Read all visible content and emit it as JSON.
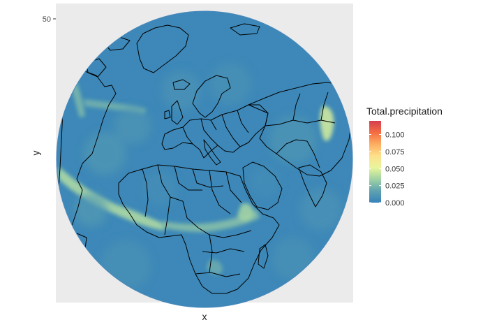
{
  "chart_data": {
    "type": "heatmap",
    "projection": "orthographic",
    "title": "",
    "xlabel": "x",
    "ylabel": "y",
    "y_ticks": [
      50
    ],
    "y_tick_labels": [
      "50"
    ],
    "x_ticks": [],
    "grid": false,
    "legend": {
      "title": "Total.precipitation",
      "placement": "right",
      "breaks": [
        0.0,
        0.025,
        0.05,
        0.075,
        0.1
      ],
      "labels": [
        "0.000",
        "0.025",
        "0.050",
        "0.075",
        "0.100"
      ],
      "range": [
        0,
        0.12
      ],
      "palette": [
        "#3682ba",
        "#5fa2b0",
        "#9fd2a4",
        "#e8f59c",
        "#fee08b",
        "#fdae61",
        "#f46d43",
        "#d53e4f"
      ]
    },
    "background_color": "#ebebeb",
    "values": {
      "typical": 0.003,
      "max_observed": 0.05
    }
  }
}
